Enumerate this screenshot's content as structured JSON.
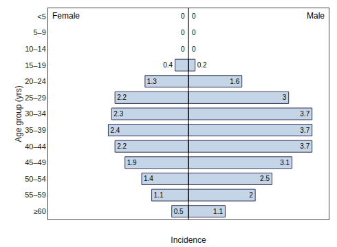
{
  "chart_data": {
    "type": "bar",
    "orientation": "horizontal",
    "categories": [
      "<5",
      "5–9",
      "10–14",
      "15–19",
      "20–24",
      "25–29",
      "30–34",
      "35–39",
      "40–44",
      "45–49",
      "50–54",
      "55–59",
      "≥60"
    ],
    "series": [
      {
        "name": "Female",
        "values": [
          0.0,
          0.0,
          0.0,
          0.4,
          1.3,
          2.2,
          2.3,
          2.4,
          2.2,
          1.9,
          1.4,
          1.1,
          0.5
        ]
      },
      {
        "name": "Male",
        "values": [
          0.0,
          0.0,
          0.0,
          0.2,
          1.6,
          3.0,
          3.7,
          3.7,
          3.7,
          3.1,
          2.5,
          2.0,
          1.1
        ]
      }
    ],
    "color": "#c5d5e8",
    "xlabel": "Incidence",
    "ylabel": "Age group (yrs)",
    "xlim": [
      -4.2,
      4.2
    ],
    "tick_labels": "y",
    "data_labels": true,
    "grid": false
  }
}
